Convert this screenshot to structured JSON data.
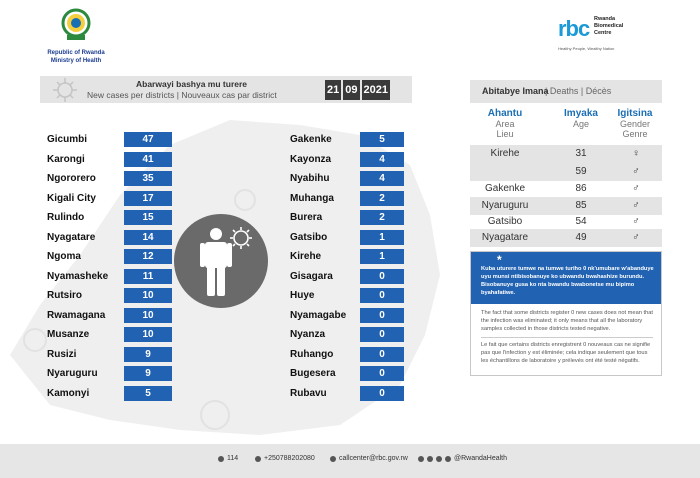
{
  "header": {
    "gov_line1": "Republic of Rwanda",
    "gov_line2": "Ministry of Health",
    "rbc_mark": "rbc",
    "rbc_name_line1": "Rwanda",
    "rbc_name_line2": "Biomedical",
    "rbc_name_line3": "Centre",
    "rbc_tagline": "Healthy People, Wealthy Nation"
  },
  "title": {
    "kinyarwanda": "Abarwayi bashya mu turere",
    "en_fr": "New cases per districts  |  Nouveaux cas par district"
  },
  "date": {
    "day": "21",
    "month": "09",
    "year": "2021"
  },
  "districts_left": [
    {
      "name": "Gicumbi",
      "value": "47"
    },
    {
      "name": "Karongi",
      "value": "41"
    },
    {
      "name": "Ngororero",
      "value": "35"
    },
    {
      "name": "Kigali City",
      "value": "17"
    },
    {
      "name": "Rulindo",
      "value": "15"
    },
    {
      "name": "Nyagatare",
      "value": "14"
    },
    {
      "name": "Ngoma",
      "value": "12"
    },
    {
      "name": "Nyamasheke",
      "value": "11"
    },
    {
      "name": "Rutsiro",
      "value": "10"
    },
    {
      "name": "Rwamagana",
      "value": "10"
    },
    {
      "name": "Musanze",
      "value": "10"
    },
    {
      "name": "Rusizi",
      "value": "9"
    },
    {
      "name": "Nyaruguru",
      "value": "9"
    },
    {
      "name": "Kamonyi",
      "value": "5"
    }
  ],
  "districts_right": [
    {
      "name": "Gakenke",
      "value": "5"
    },
    {
      "name": "Kayonza",
      "value": "4"
    },
    {
      "name": "Nyabihu",
      "value": "4"
    },
    {
      "name": "Muhanga",
      "value": "2"
    },
    {
      "name": "Burera",
      "value": "2"
    },
    {
      "name": "Gatsibo",
      "value": "1"
    },
    {
      "name": "Kirehe",
      "value": "1"
    },
    {
      "name": "Gisagara",
      "value": "0"
    },
    {
      "name": "Huye",
      "value": "0"
    },
    {
      "name": "Nyamagabe",
      "value": "0"
    },
    {
      "name": "Nyanza",
      "value": "0"
    },
    {
      "name": "Ruhango",
      "value": "0"
    },
    {
      "name": "Bugesera",
      "value": "0"
    },
    {
      "name": "Rubavu",
      "value": "0"
    }
  ],
  "deaths": {
    "title": "Abitabye Imana",
    "subtitle": "|  Deaths  |  Décès",
    "col_area": {
      "kin": "Ahantu",
      "en": "Area",
      "fr": "Lieu"
    },
    "col_age": {
      "kin": "Imyaka",
      "en": "Age"
    },
    "col_gender": {
      "kin": "Igitsina",
      "en": "Gender",
      "fr": "Genre"
    },
    "rows": [
      {
        "area": "Kirehe",
        "age": "31",
        "gender": "♀"
      },
      {
        "area": "",
        "age": "59",
        "gender": "♂"
      },
      {
        "area": "Gakenke",
        "age": "86",
        "gender": "♂"
      },
      {
        "area": "Nyaruguru",
        "age": "85",
        "gender": "♂"
      },
      {
        "area": "Gatsibo",
        "age": "54",
        "gender": "♂"
      },
      {
        "area": "Nyagatare",
        "age": "49",
        "gender": "♂"
      }
    ]
  },
  "note": {
    "asterisk": "*",
    "kinyarwanda": "Kuba uturere tumwe na tumwe turiho 0 nk'umubare w'abanduye uyu munsi ntibisobanuye ko ubwandu bwahashize burundu. Bisobanuye gusa ko nta bwandu bwabonetse mu bipimo byahafatiwe.",
    "english": "The fact that some districts register 0 new cases does not mean that the infection was eliminated; it only means that all the laboratory samples collected in those districts tested negative.",
    "french": "Le fait que certains districts enregistrent 0 nouveaux cas ne signifie pas que l'infection y est éliminée; cela indique seulement que tous les échantillons de laboratoire y prélevés ont été testé négatifs."
  },
  "footer": {
    "hotline": "114",
    "phone": "+250788202080",
    "email": "callcenter@rbc.gov.rw",
    "social_handle": "@RwandaHealth"
  },
  "colors": {
    "value_box": "#2162b3",
    "band": "#e4e4e4",
    "date_box": "#3a3a3a",
    "accent_blue": "#1a6fb4"
  }
}
